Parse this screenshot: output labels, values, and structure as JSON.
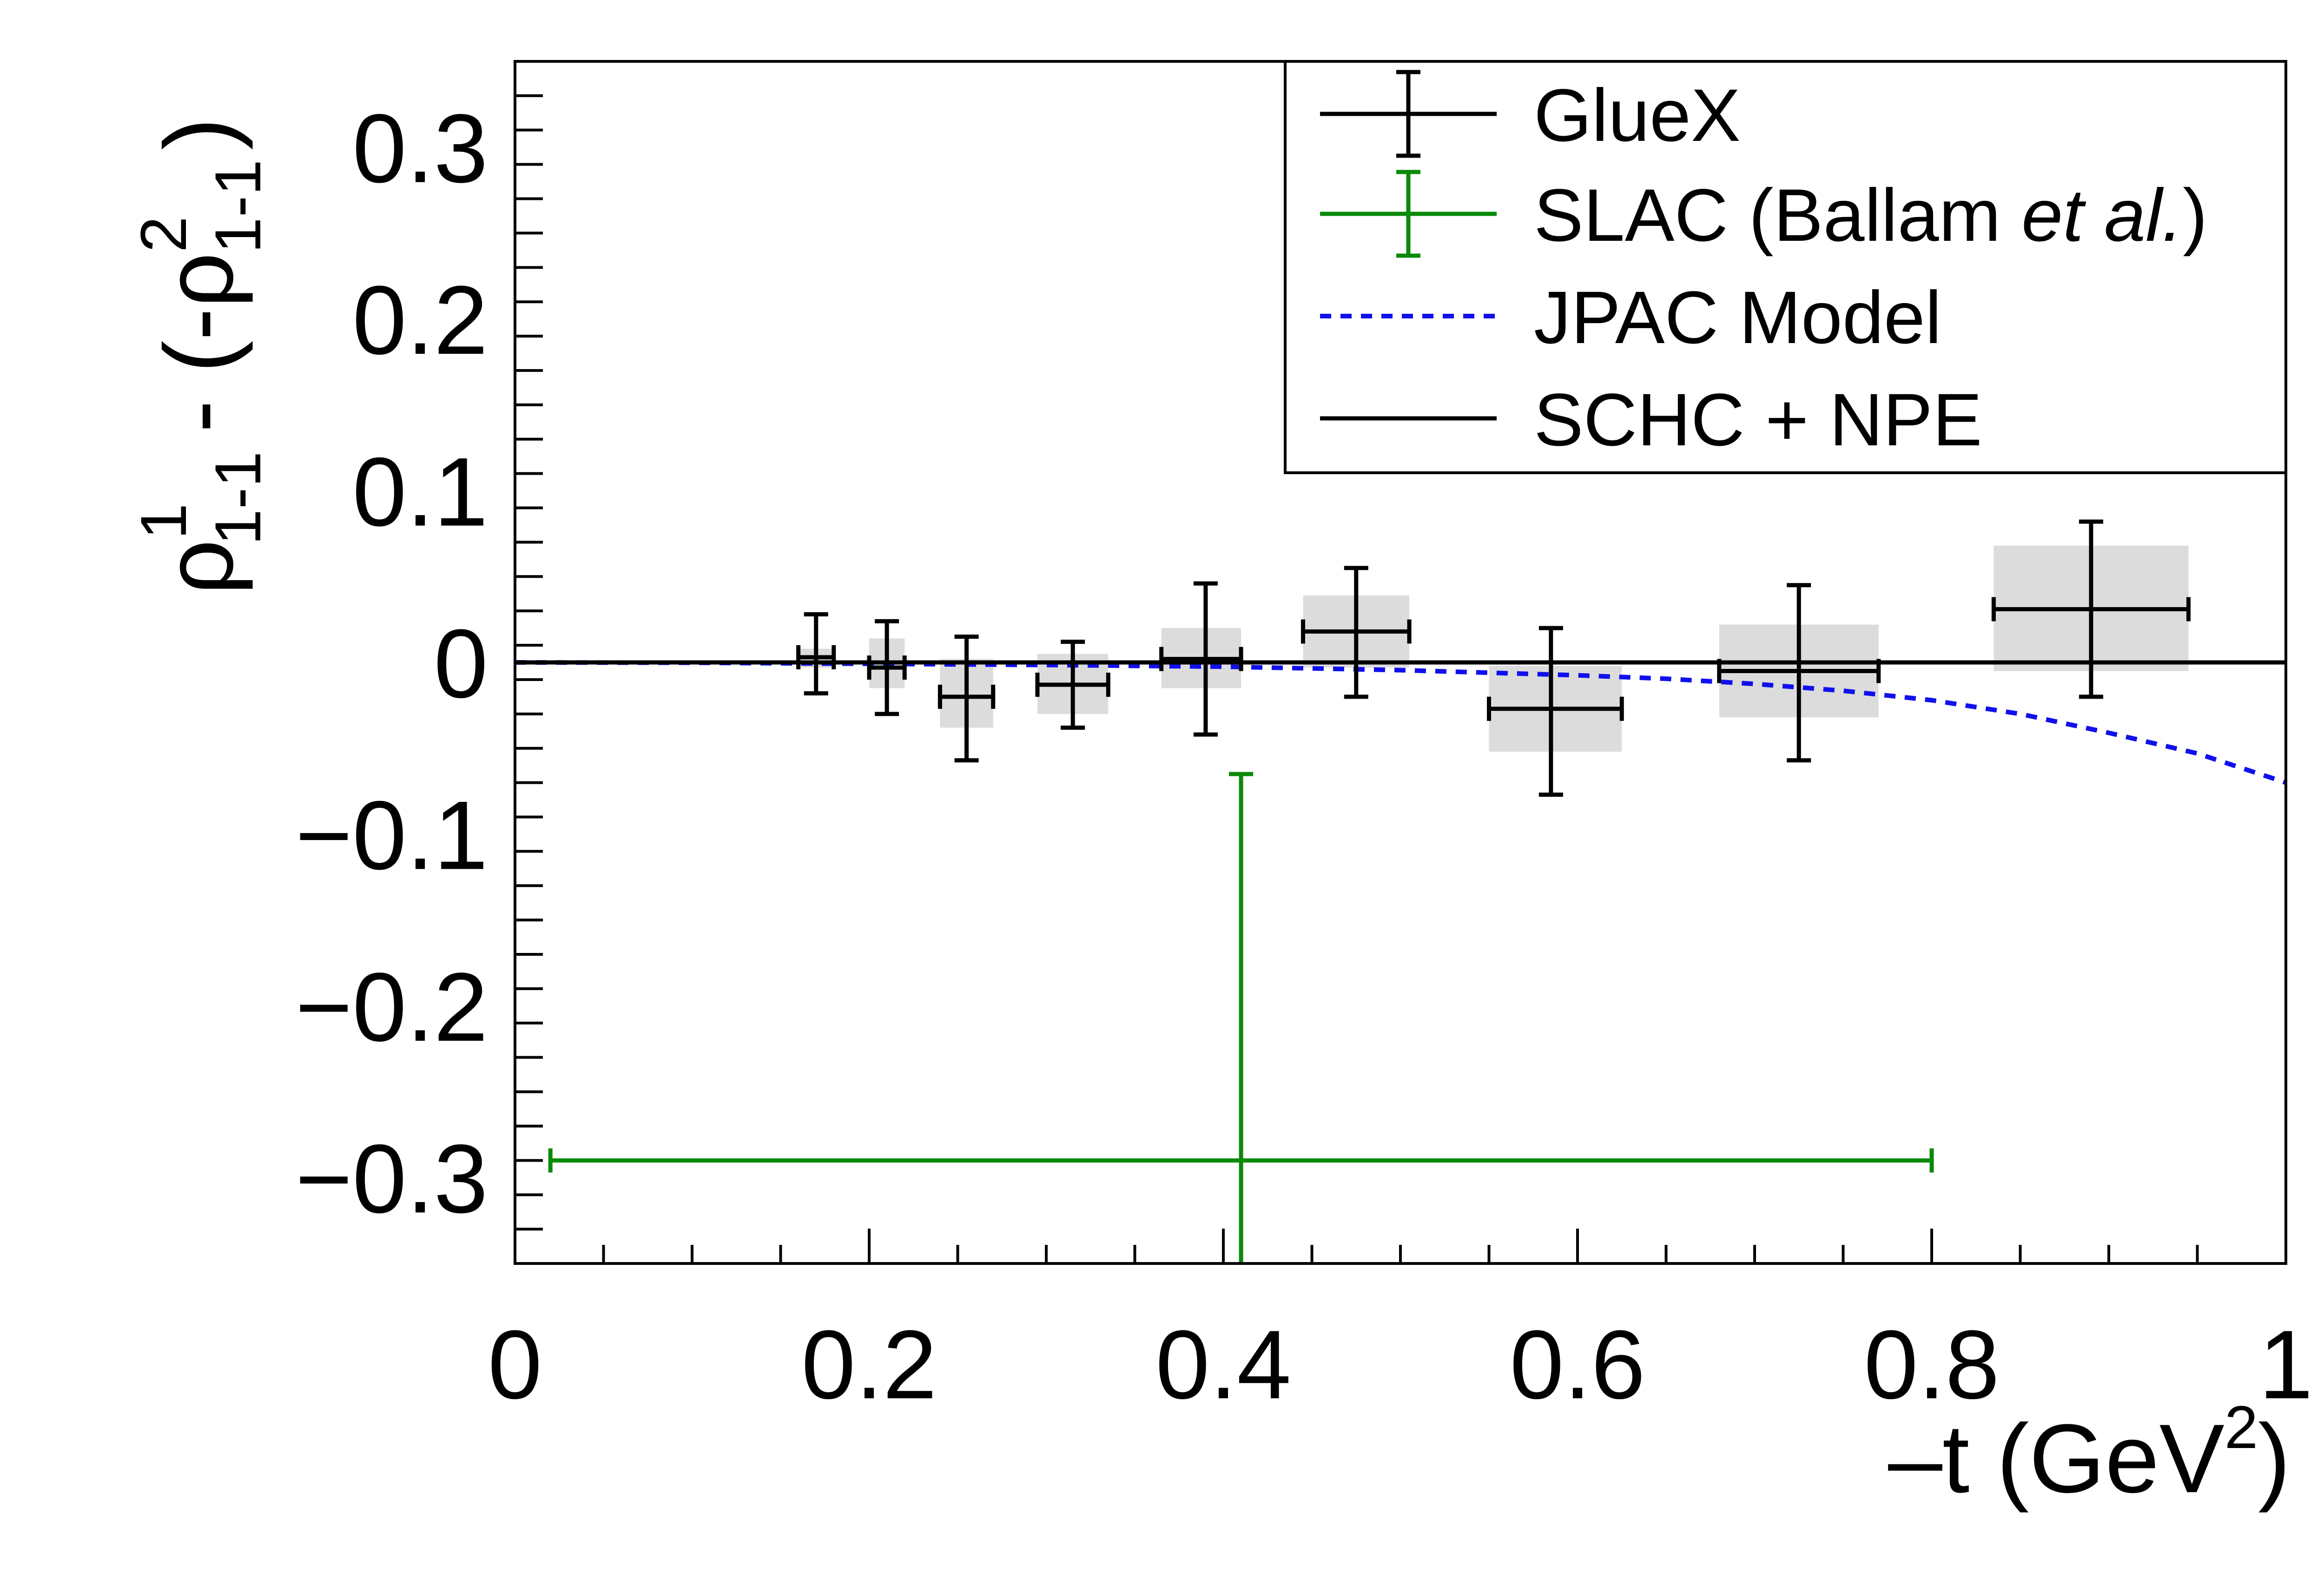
{
  "chart_data": {
    "type": "scatter",
    "title": "",
    "xlabel_prefix": "–t (GeV",
    "xlabel_sup": "2",
    "xlabel_suffix": ")",
    "ylabel": {
      "rho1": "ρ",
      "rho1_sup": "1",
      "rho1_sub": "1-1",
      "mid": "- (-",
      "rho2": "ρ",
      "rho2_sup": "2",
      "rho2_sub": "1-1",
      "close": ")"
    },
    "xlim": [
      0,
      1
    ],
    "ylim": [
      -0.35,
      0.35
    ],
    "x_ticks": [
      {
        "value": 0,
        "label": "0"
      },
      {
        "value": 0.2,
        "label": "0.2"
      },
      {
        "value": 0.4,
        "label": "0.4"
      },
      {
        "value": 0.6,
        "label": "0.6"
      },
      {
        "value": 0.8,
        "label": "0.8"
      },
      {
        "value": 1,
        "label": "1"
      }
    ],
    "y_ticks": [
      {
        "value": 0.3,
        "label": "0.3"
      },
      {
        "value": 0.2,
        "label": "0.2"
      },
      {
        "value": 0.1,
        "label": "0.1"
      },
      {
        "value": 0,
        "label": "0"
      },
      {
        "value": -0.1,
        "label": "−0.1"
      },
      {
        "value": -0.2,
        "label": "−0.2"
      },
      {
        "value": -0.3,
        "label": "−0.3"
      }
    ],
    "grid": false,
    "legend_position": "top-right",
    "legend": {
      "gluex": "GlueX",
      "slac_prefix": "SLAC (Ballam ",
      "slac_italic": "et al.",
      "slac_suffix": ")",
      "jpac": "JPAC Model",
      "schc": "SCHC + NPE"
    },
    "colors": {
      "gluex": "#000000",
      "slac": "#0a8a0a",
      "jpac": "#1010ee",
      "schc": "#000000",
      "syst_box": "#dcdcdc"
    },
    "series": [
      {
        "name": "GlueX",
        "points": [
          {
            "x": 0.17,
            "xlo": 0.16,
            "xhi": 0.18,
            "y": 0.003,
            "ylo": -0.018,
            "yhi": 0.028,
            "syst_lo": -0.003,
            "syst_hi": 0.008
          },
          {
            "x": 0.21,
            "xlo": 0.2,
            "xhi": 0.22,
            "y": -0.003,
            "ylo": -0.03,
            "yhi": 0.024,
            "syst_lo": -0.015,
            "syst_hi": 0.014
          },
          {
            "x": 0.255,
            "xlo": 0.24,
            "xhi": 0.27,
            "y": -0.02,
            "ylo": -0.057,
            "yhi": 0.015,
            "syst_lo": -0.038,
            "syst_hi": 0.002
          },
          {
            "x": 0.315,
            "xlo": 0.295,
            "xhi": 0.335,
            "y": -0.013,
            "ylo": -0.038,
            "yhi": 0.012,
            "syst_lo": -0.03,
            "syst_hi": 0.005
          },
          {
            "x": 0.39,
            "xlo": 0.365,
            "xhi": 0.41,
            "y": 0.002,
            "ylo": -0.042,
            "yhi": 0.046,
            "syst_lo": -0.015,
            "syst_hi": 0.02
          },
          {
            "x": 0.475,
            "xlo": 0.445,
            "xhi": 0.505,
            "y": 0.018,
            "ylo": -0.02,
            "yhi": 0.055,
            "syst_lo": -0.003,
            "syst_hi": 0.039
          },
          {
            "x": 0.585,
            "xlo": 0.55,
            "xhi": 0.625,
            "y": -0.027,
            "ylo": -0.077,
            "yhi": 0.02,
            "syst_lo": -0.052,
            "syst_hi": -0.002
          },
          {
            "x": 0.725,
            "xlo": 0.68,
            "xhi": 0.77,
            "y": -0.005,
            "ylo": -0.057,
            "yhi": 0.045,
            "syst_lo": -0.032,
            "syst_hi": 0.022
          },
          {
            "x": 0.89,
            "xlo": 0.835,
            "xhi": 0.945,
            "y": 0.031,
            "ylo": -0.02,
            "yhi": 0.082,
            "syst_lo": -0.005,
            "syst_hi": 0.068
          }
        ]
      },
      {
        "name": "SLAC (Ballam et al.)",
        "points": [
          {
            "x": 0.41,
            "xlo": 0.02,
            "xhi": 0.8,
            "y": -0.29,
            "ylo": -0.35,
            "yhi": -0.065
          }
        ]
      },
      {
        "name": "JPAC Model",
        "x": [
          0,
          0.1,
          0.2,
          0.3,
          0.4,
          0.5,
          0.6,
          0.65,
          0.7,
          0.75,
          0.8,
          0.85,
          0.9,
          0.95,
          1.0
        ],
        "y": [
          0,
          -0.0002,
          -0.0008,
          -0.0015,
          -0.0025,
          -0.0045,
          -0.0075,
          -0.0095,
          -0.0125,
          -0.0165,
          -0.022,
          -0.03,
          -0.041,
          -0.053,
          -0.07
        ]
      },
      {
        "name": "SCHC + NPE",
        "x": [
          0,
          1
        ],
        "y": [
          0,
          0
        ]
      }
    ]
  }
}
